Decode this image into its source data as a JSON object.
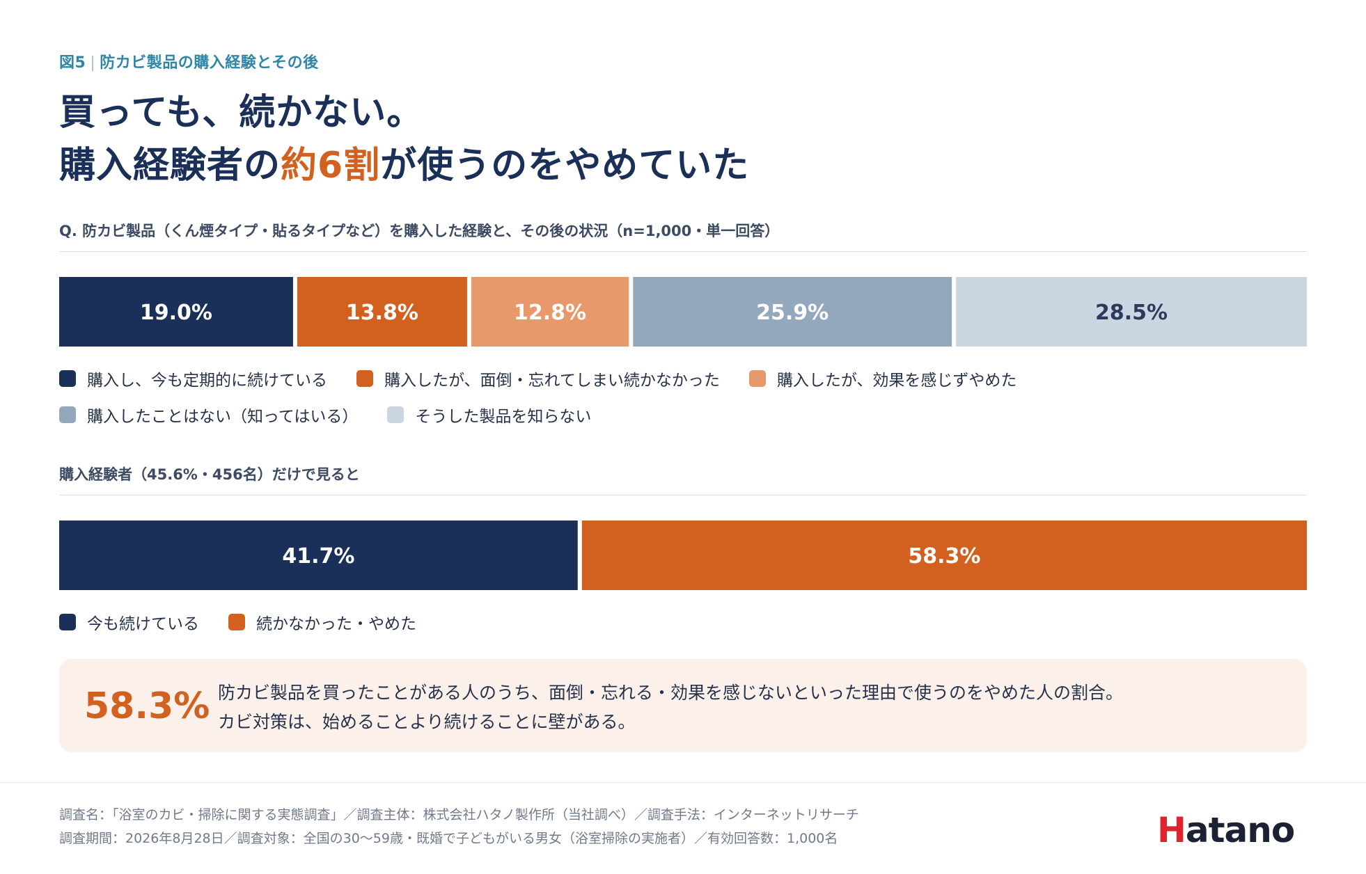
{
  "figure_label": {
    "number": "図5",
    "separator": "|",
    "title": "防カビ製品の購入経験とその後"
  },
  "headline": {
    "line1": "買っても、続かない。",
    "line2_prefix": "購入経験者の",
    "line2_accent": "約6割",
    "line2_suffix": "が使うのをやめていた"
  },
  "question": "Q. 防カビ製品（くん煙タイプ・貼るタイプなど）を購入した経験と、その後の状況（n=1,000・単一回答）",
  "section2_label": "購入経験者（45.6%・456名）だけで見ると",
  "chart_data": [
    {
      "type": "bar",
      "orientation": "horizontal-stacked-100",
      "unit": "%",
      "series": [
        {
          "name": "購入し、今も定期的に続けている",
          "value": 19.0,
          "label": "19.0%",
          "color": "#1b3058",
          "label_color": "#ffffff"
        },
        {
          "name": "購入したが、面倒・忘れてしまい続かなかった",
          "value": 13.8,
          "label": "13.8%",
          "color": "#d2601f",
          "label_color": "#ffffff"
        },
        {
          "name": "購入したが、効果を感じずやめた",
          "value": 12.8,
          "label": "12.8%",
          "color": "#e8996c",
          "label_color": "#ffffff"
        },
        {
          "name": "購入したことはない（知ってはいる）",
          "value": 25.9,
          "label": "25.9%",
          "color": "#93a7bd",
          "label_color": "#ffffff"
        },
        {
          "name": "そうした製品を知らない",
          "value": 28.5,
          "label": "28.5%",
          "color": "#ccd6e2",
          "label_color": "#2a3c5c"
        }
      ],
      "legend_rows": [
        [
          0,
          1,
          2
        ],
        [
          3,
          4
        ]
      ]
    },
    {
      "type": "bar",
      "orientation": "horizontal-stacked-100",
      "unit": "%",
      "series": [
        {
          "name": "今も続けている",
          "value": 41.7,
          "label": "41.7%",
          "color": "#1b3058",
          "label_color": "#ffffff"
        },
        {
          "name": "続かなかった・やめた",
          "value": 58.3,
          "label": "58.3%",
          "color": "#d2601f",
          "label_color": "#ffffff"
        }
      ],
      "legend_rows": [
        [
          0,
          1
        ]
      ]
    }
  ],
  "callout": {
    "value": "58.3%",
    "line1": "防カビ製品を買ったことがある人のうち、面倒・忘れる・効果を感じないといった理由で使うのをやめた人の割合。",
    "line2": "カビ対策は、始めることより続けることに壁がある。"
  },
  "footer": {
    "line1": "調査名：「浴室のカビ・掃除に関する実態調査」／調査主体：株式会社ハタノ製作所（当社調べ）／調査手法：インターネットリサーチ",
    "line2": "調査期間：2026年8月28日／調査対象：全国の30〜59歳・既婚で子どもがいる男女（浴室掃除の実施者）／有効回答数：1,000名"
  },
  "logo": {
    "first": "H",
    "rest": "atano"
  },
  "colors": {
    "navy": "#1b3058",
    "orange": "#d2601f",
    "accent_teal": "#2f86a6",
    "callout_bg": "#fbf0ea"
  }
}
